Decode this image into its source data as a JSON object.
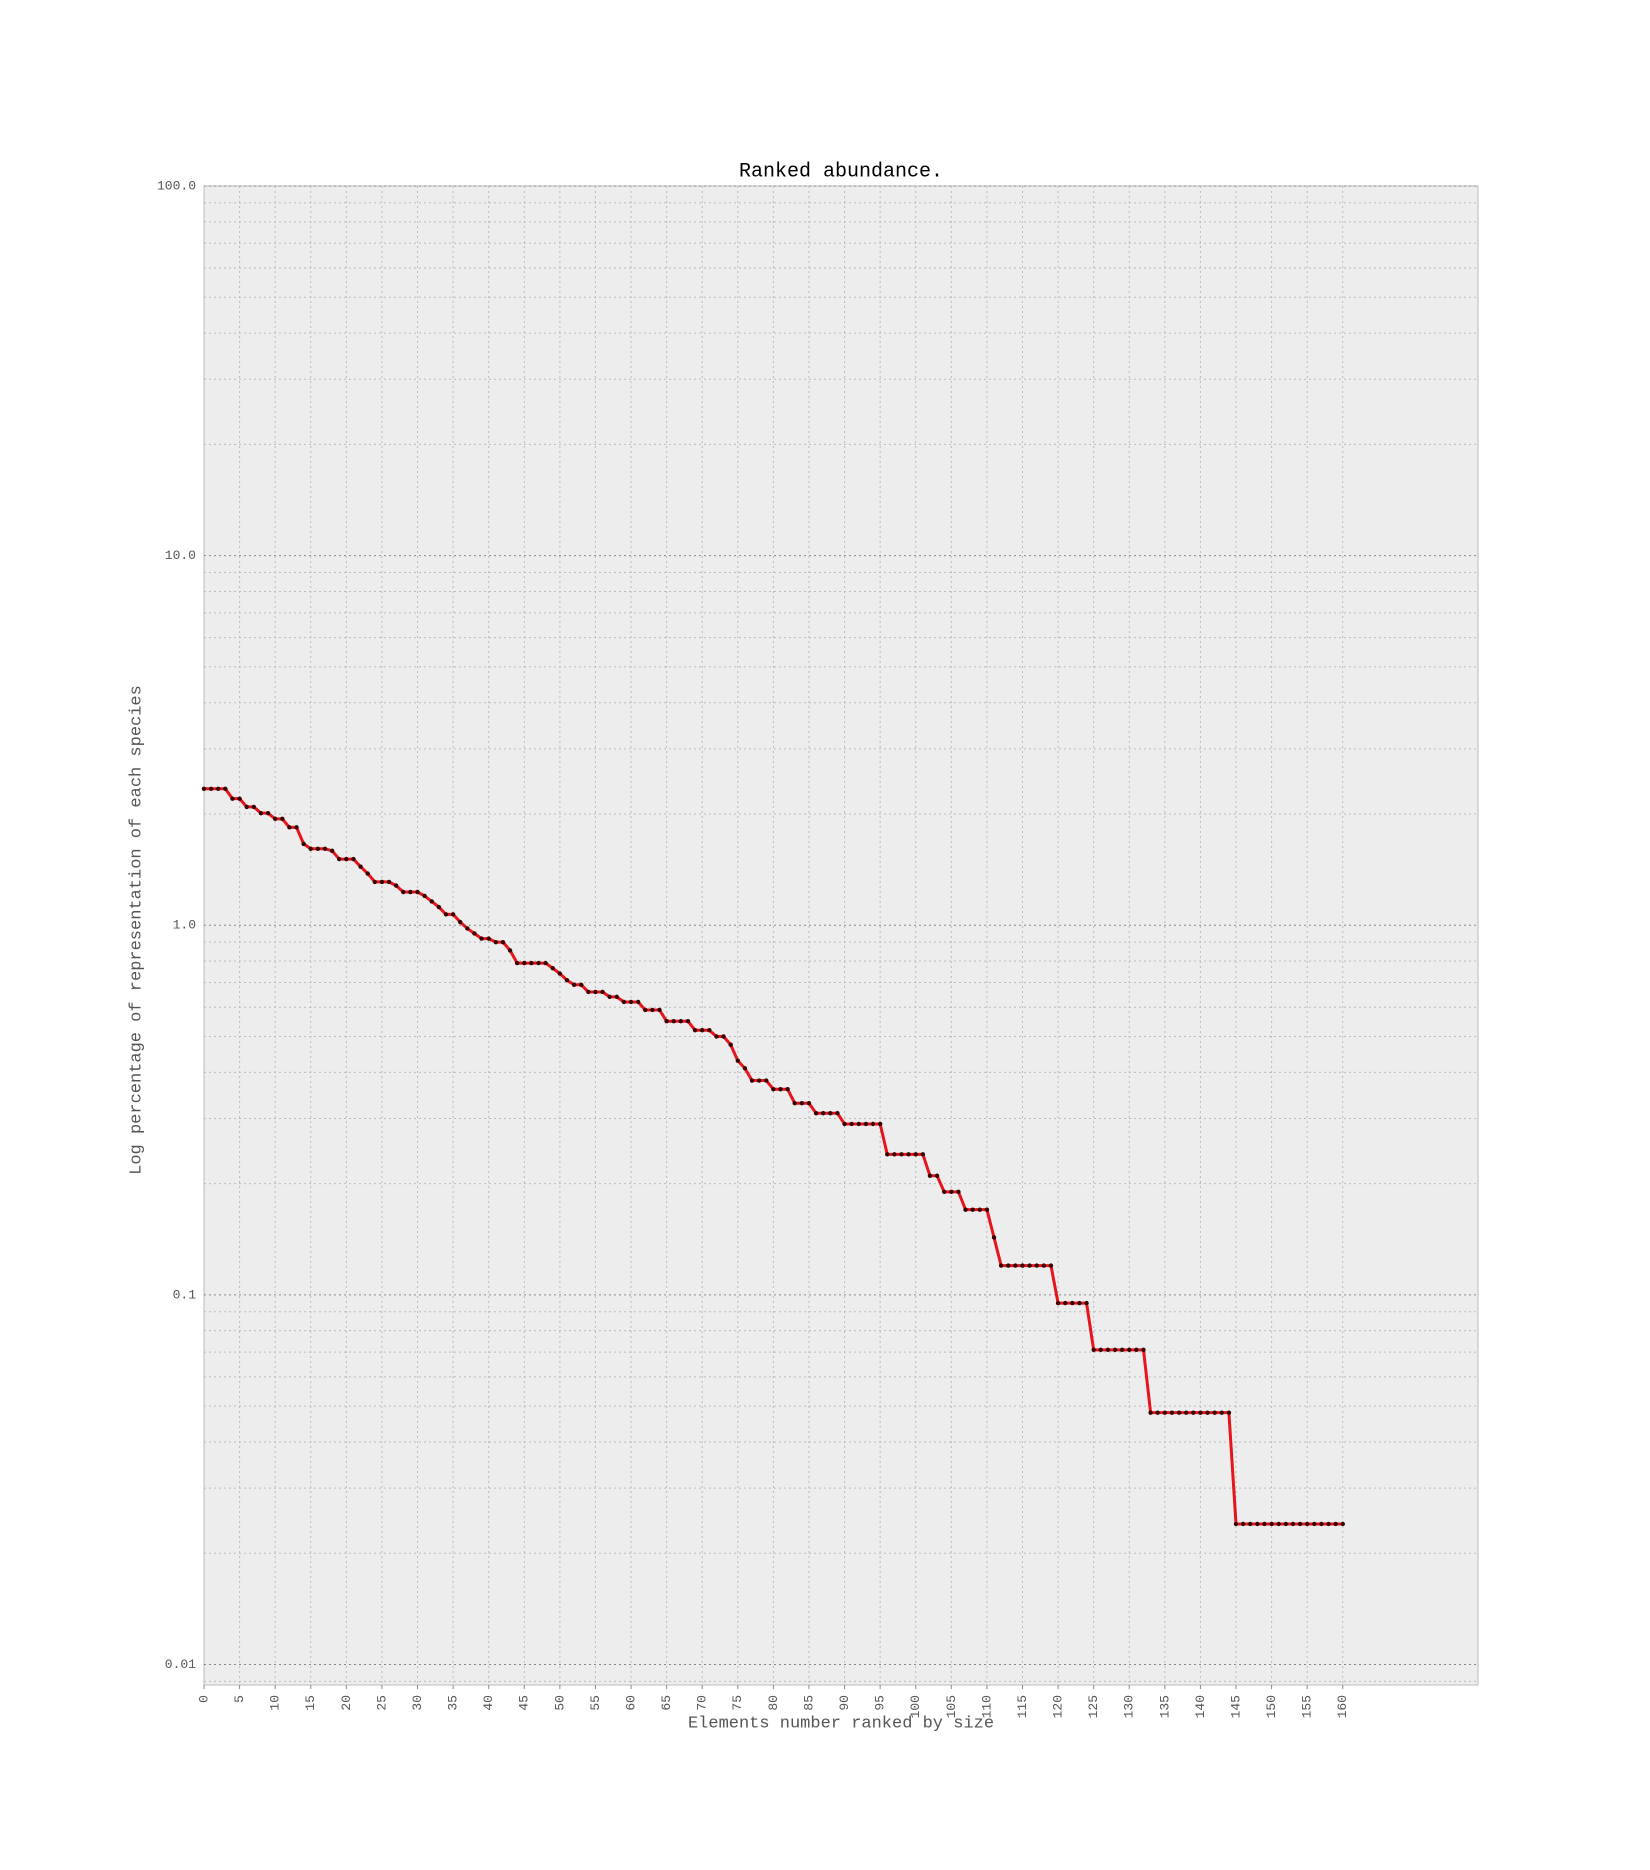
{
  "chart_data": {
    "type": "line",
    "title": "Ranked abundance.",
    "x_label": "Elements number ranked by size",
    "y_label": "Log percentage of representation of each species",
    "log_y": true,
    "grid": true,
    "xlim": [
      0,
      179
    ],
    "ylim": [
      0.0088,
      100
    ],
    "xticks": [
      0,
      5,
      10,
      15,
      20,
      25,
      30,
      35,
      40,
      45,
      50,
      55,
      60,
      65,
      70,
      75,
      80,
      85,
      90,
      95,
      100,
      105,
      110,
      115,
      120,
      125,
      130,
      135,
      140,
      145,
      150,
      155,
      160
    ],
    "yticks": [
      0.01,
      0.1,
      {
        "value": 1,
        "label": "1.0"
      },
      {
        "value": 10,
        "label": "10.0"
      },
      {
        "value": 100,
        "label": "100.0"
      }
    ],
    "series": [
      {
        "color": "#e8141c",
        "marker_color": "#3a0000",
        "values": [
          2.34,
          2.34,
          2.34,
          2.34,
          2.2,
          2.2,
          2.09,
          2.09,
          2.01,
          2.01,
          1.94,
          1.94,
          1.84,
          1.84,
          1.66,
          1.61,
          1.61,
          1.61,
          1.59,
          1.51,
          1.51,
          1.51,
          1.44,
          1.38,
          1.31,
          1.31,
          1.31,
          1.28,
          1.23,
          1.23,
          1.23,
          1.2,
          1.16,
          1.12,
          1.07,
          1.07,
          1.02,
          0.98,
          0.95,
          0.92,
          0.92,
          0.9,
          0.9,
          0.855,
          0.79,
          0.79,
          0.79,
          0.79,
          0.79,
          0.765,
          0.74,
          0.71,
          0.69,
          0.69,
          0.66,
          0.66,
          0.66,
          0.64,
          0.64,
          0.62,
          0.62,
          0.62,
          0.59,
          0.59,
          0.59,
          0.55,
          0.55,
          0.55,
          0.55,
          0.52,
          0.52,
          0.52,
          0.5,
          0.5,
          0.475,
          0.43,
          0.41,
          0.38,
          0.38,
          0.38,
          0.36,
          0.36,
          0.36,
          0.33,
          0.33,
          0.33,
          0.31,
          0.31,
          0.31,
          0.31,
          0.29,
          0.29,
          0.29,
          0.29,
          0.29,
          0.29,
          0.24,
          0.24,
          0.24,
          0.24,
          0.24,
          0.24,
          0.21,
          0.21,
          0.19,
          0.19,
          0.19,
          0.17,
          0.17,
          0.17,
          0.17,
          0.143,
          0.12,
          0.12,
          0.12,
          0.12,
          0.12,
          0.12,
          0.12,
          0.12,
          0.095,
          0.095,
          0.095,
          0.095,
          0.095,
          0.071,
          0.071,
          0.071,
          0.071,
          0.071,
          0.071,
          0.071,
          0.071,
          0.048,
          0.048,
          0.048,
          0.048,
          0.048,
          0.048,
          0.048,
          0.048,
          0.048,
          0.048,
          0.048,
          0.048,
          0.024,
          0.024,
          0.024,
          0.024,
          0.024,
          0.024,
          0.024,
          0.024,
          0.024,
          0.024,
          0.024,
          0.024,
          0.024,
          0.024,
          0.024,
          0.024
        ]
      }
    ]
  }
}
